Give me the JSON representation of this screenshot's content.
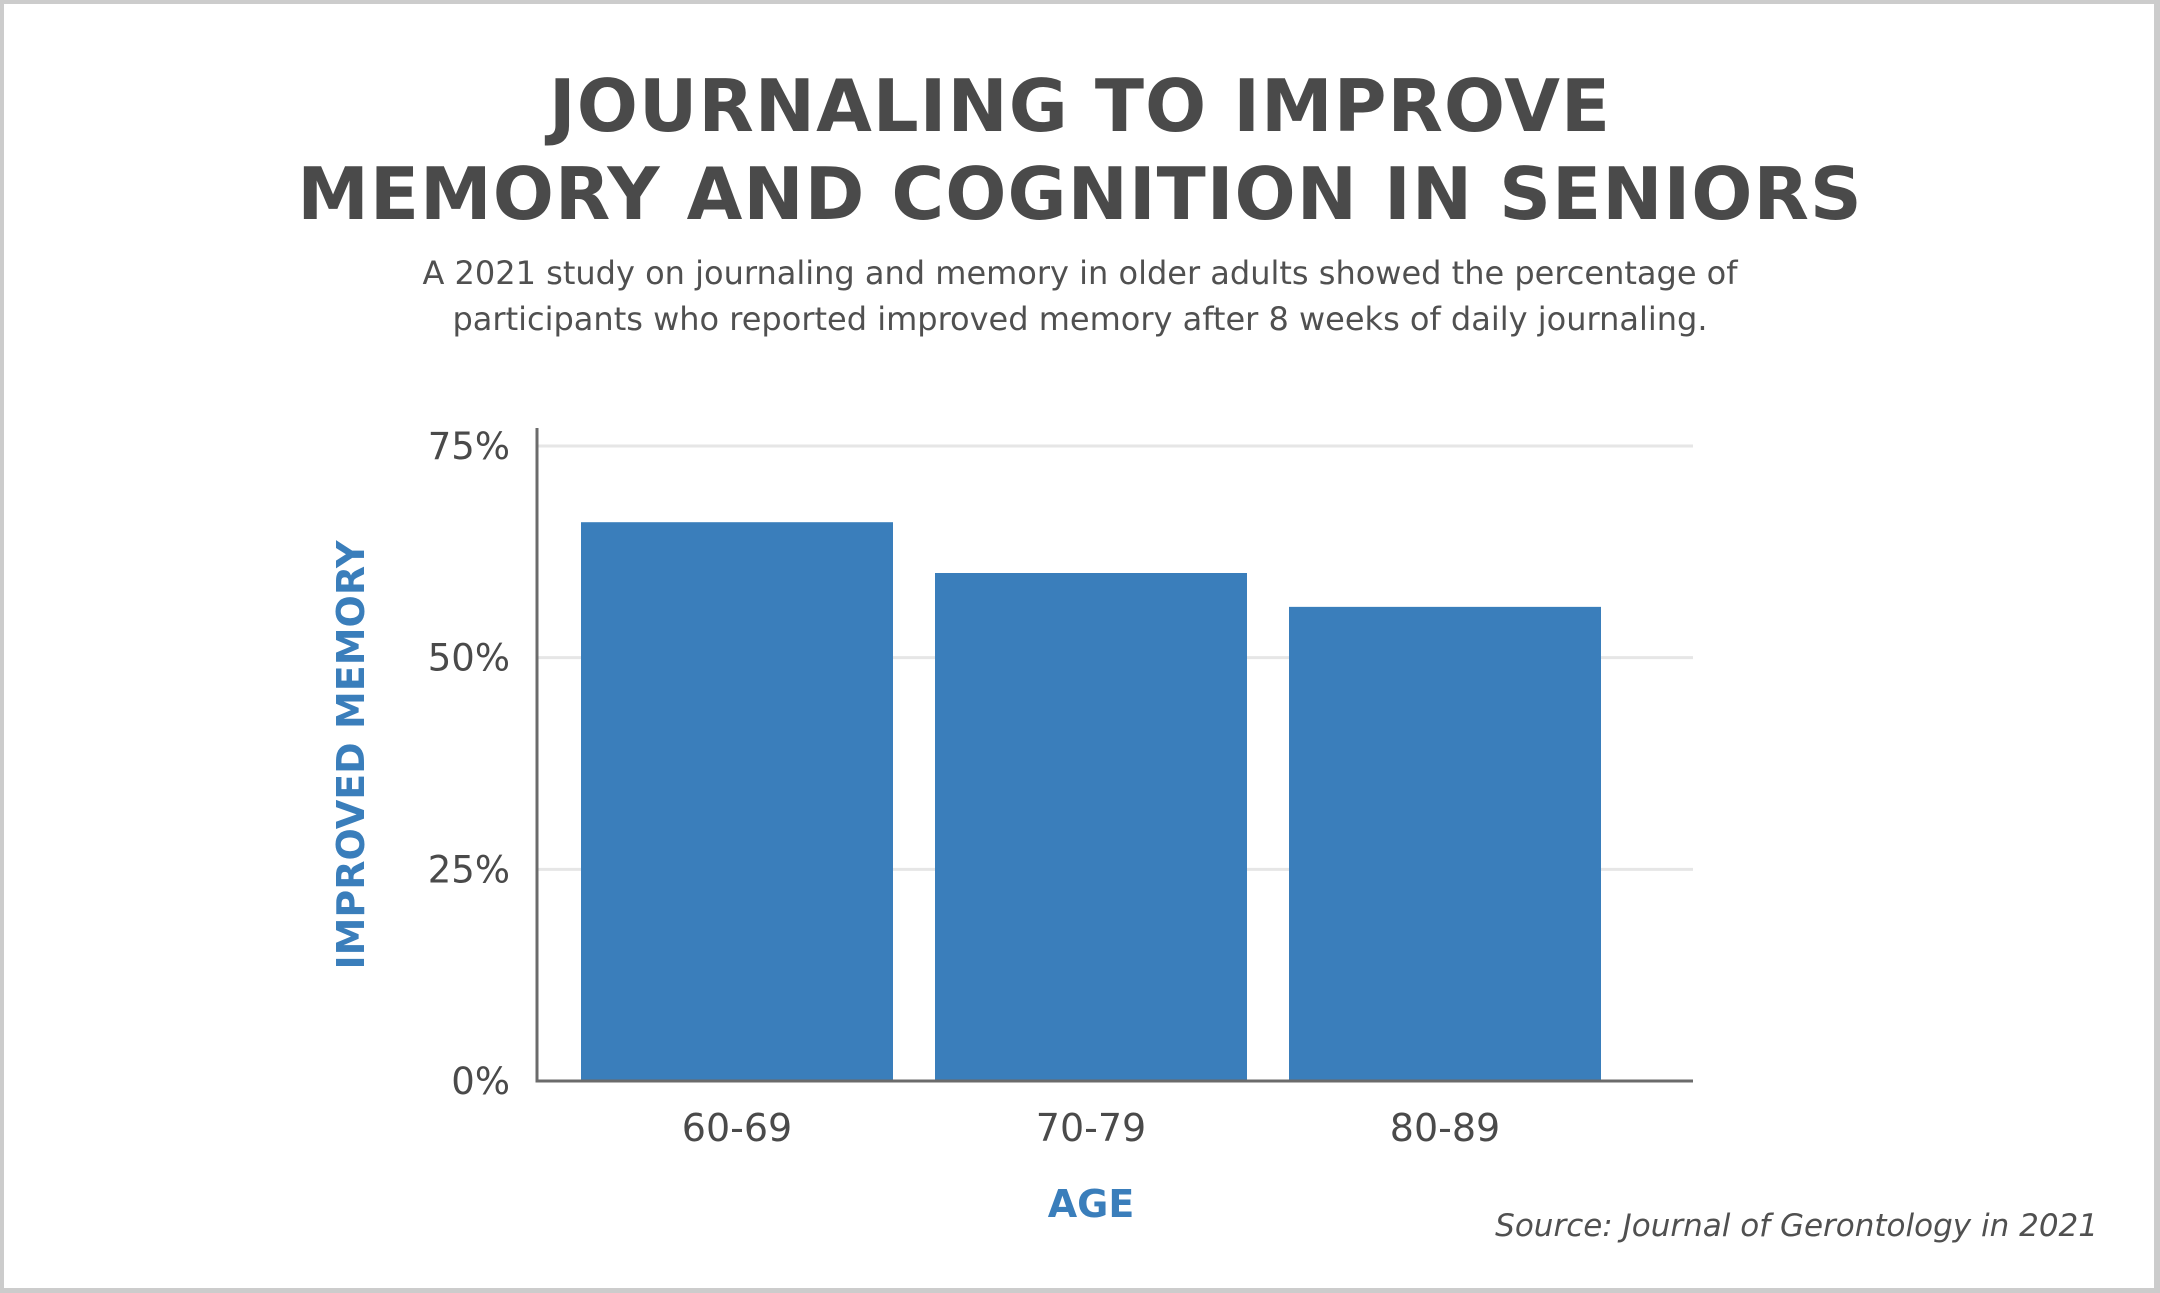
{
  "title_lines": [
    "JOURNALING TO IMPROVE",
    "MEMORY AND COGNITION IN SENIORS"
  ],
  "subtitle_lines": [
    "A 2021 study on journaling and memory in older adults showed the percentage of",
    "participants who reported improved memory after 8 weeks of daily journaling."
  ],
  "source": "Source: Journal of Gerontology in 2021",
  "colors": {
    "bar": "#3a7ebb",
    "axis_label": "#3a7ebb",
    "text": "#4a4a4a",
    "grid": "#e6e6e6",
    "axis": "#6b6b6b",
    "frame": "#cccccc"
  },
  "chart_data": {
    "type": "bar",
    "title": "JOURNALING TO IMPROVE MEMORY AND COGNITION IN SENIORS",
    "xlabel": "AGE",
    "ylabel": "IMPROVED MEMORY",
    "categories": [
      "60-69",
      "70-79",
      "80-89"
    ],
    "values": [
      66,
      60,
      56
    ],
    "unit": "%",
    "ylim": [
      0,
      75
    ],
    "yticks": [
      0,
      25,
      50,
      75
    ],
    "ytick_labels": [
      "0%",
      "25%",
      "50%",
      "75%"
    ],
    "grid": true,
    "legend": "none"
  }
}
